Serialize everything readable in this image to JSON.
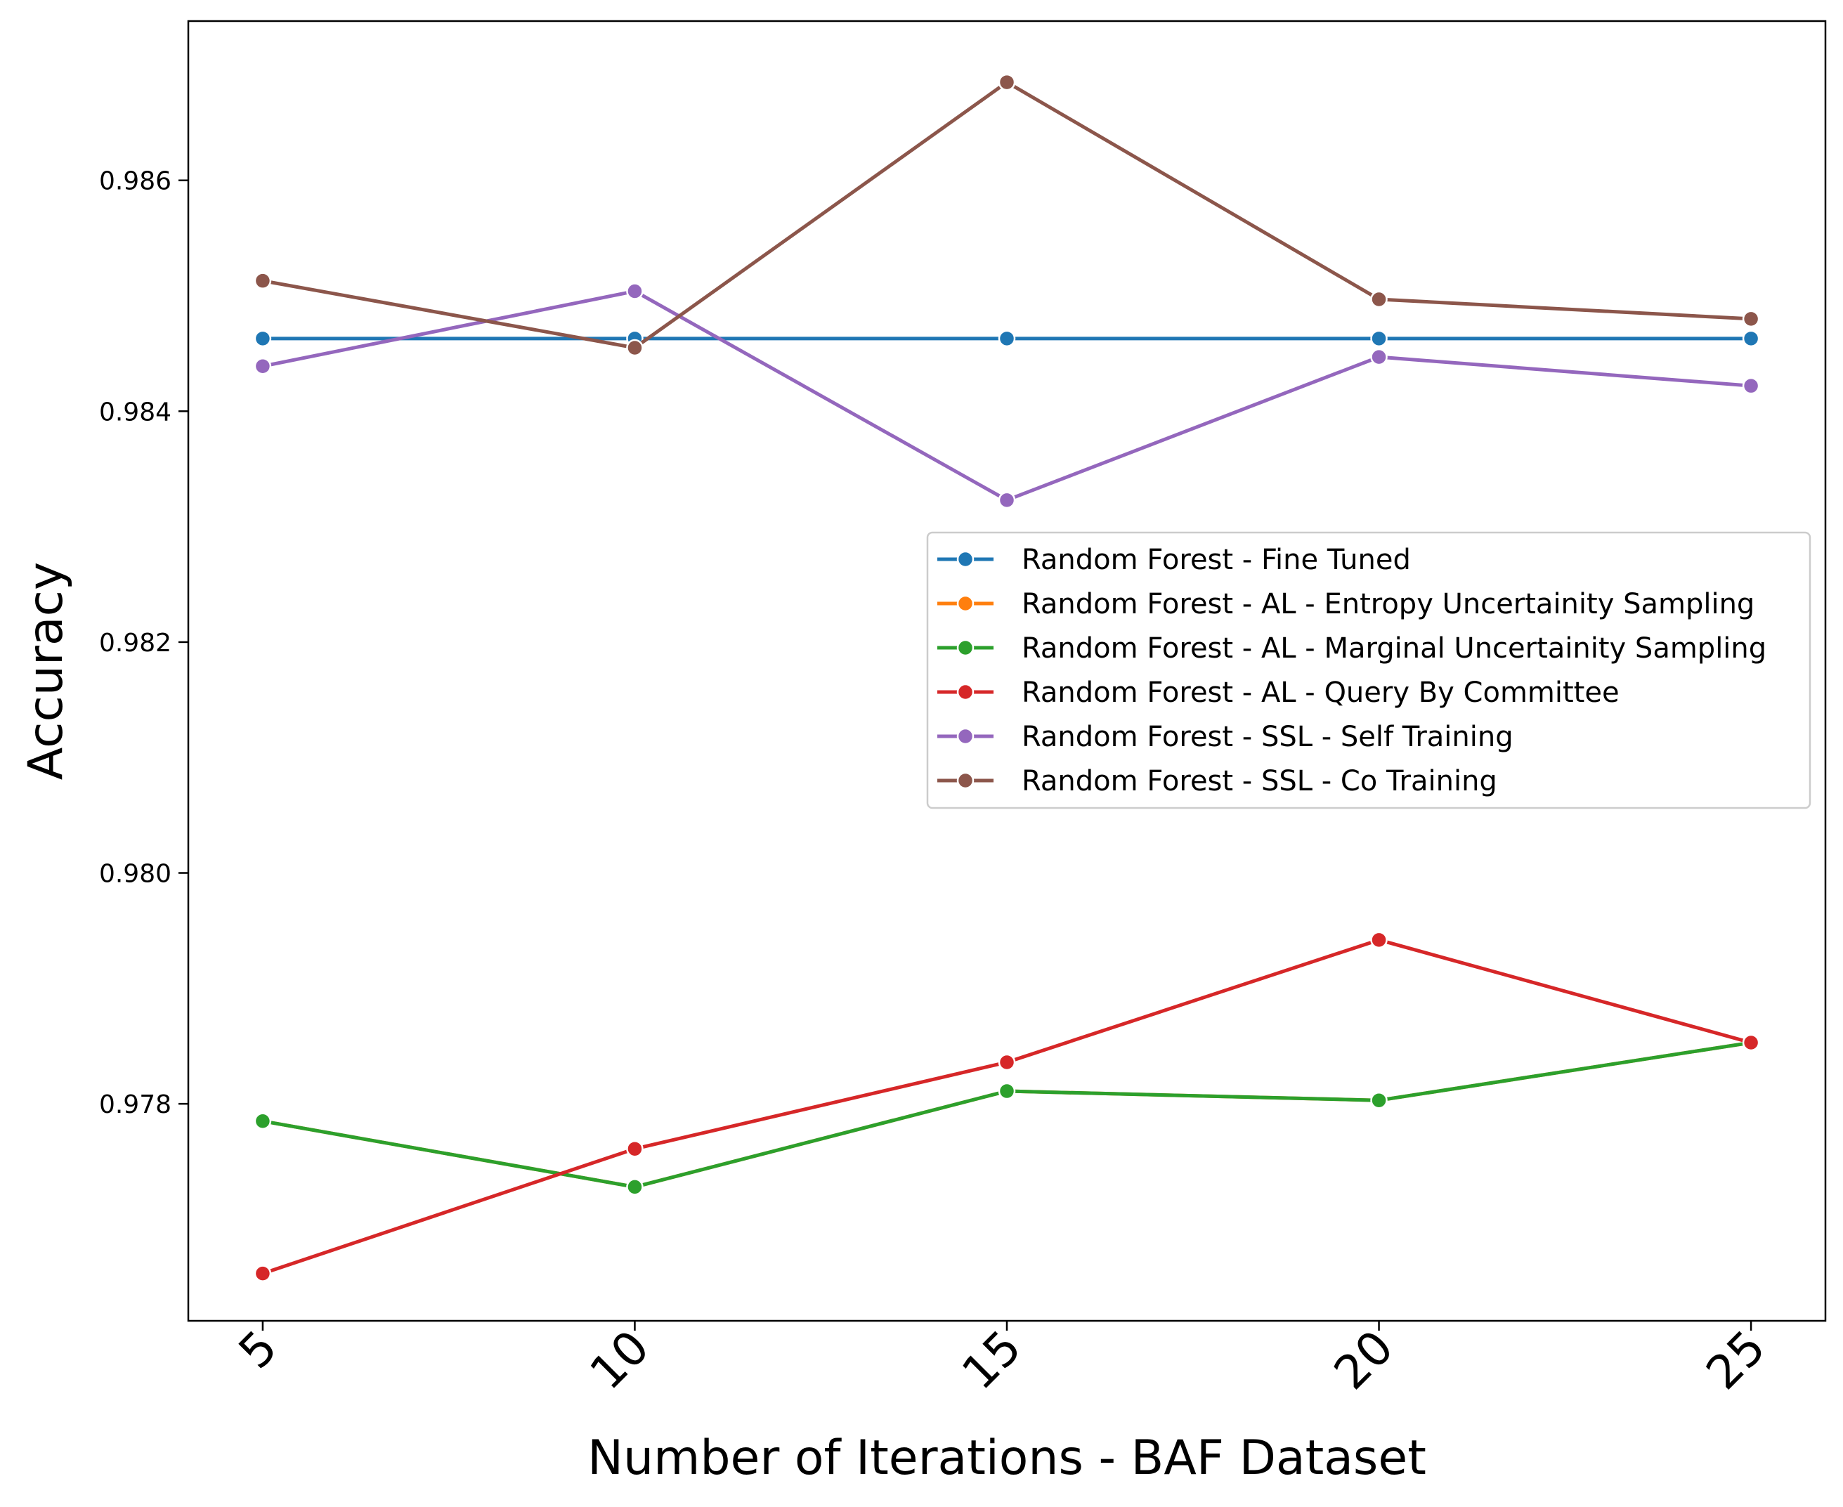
{
  "chart_data": {
    "type": "line",
    "title": "",
    "xlabel": "Number of Iterations - BAF Dataset",
    "ylabel": "Accuracy",
    "x": [
      5,
      10,
      15,
      20,
      25
    ],
    "x_tick_labels": [
      "5",
      "10",
      "15",
      "20",
      "25"
    ],
    "y_ticks": [
      0.978,
      0.98,
      0.982,
      0.984,
      0.986
    ],
    "y_tick_labels": [
      "0.978",
      "0.980",
      "0.982",
      "0.984",
      "0.986"
    ],
    "xlim": [
      4,
      26
    ],
    "ylim": [
      0.97612,
      0.98738
    ],
    "grid": false,
    "legend_position": "center-right",
    "series": [
      {
        "name": "Random Forest - Fine Tuned",
        "color": "#1f77b4",
        "values": [
          0.98463,
          0.98463,
          0.98463,
          0.98463,
          0.98463
        ]
      },
      {
        "name": "Random Forest - AL - Entropy Uncertainity Sampling",
        "color": "#ff7f0e",
        "values": [
          0.97785,
          0.97728,
          0.97811,
          0.97803,
          0.97853
        ]
      },
      {
        "name": "Random Forest - AL - Marginal Uncertainity Sampling",
        "color": "#2ca02c",
        "values": [
          0.97785,
          0.97728,
          0.97811,
          0.97803,
          0.97853
        ]
      },
      {
        "name": "Random Forest - AL - Query By Committee",
        "color": "#d62728",
        "values": [
          0.97653,
          0.97761,
          0.97836,
          0.97942,
          0.97853
        ]
      },
      {
        "name": "Random Forest - SSL - Self Training",
        "color": "#9467bd",
        "values": [
          0.98439,
          0.98504,
          0.98323,
          0.98447,
          0.98422
        ]
      },
      {
        "name": "Random Forest - SSL - Co Training",
        "color": "#8c564b",
        "values": [
          0.98513,
          0.98455,
          0.98685,
          0.98497,
          0.9848
        ]
      }
    ]
  }
}
